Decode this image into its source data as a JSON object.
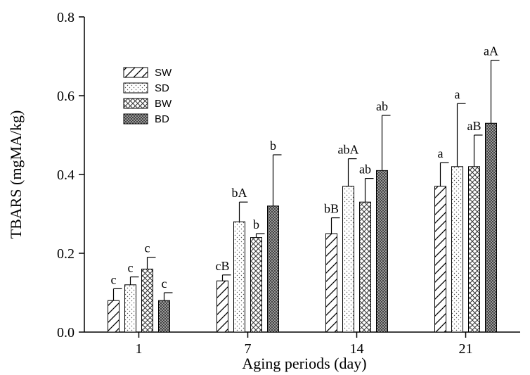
{
  "chart_data": {
    "type": "bar",
    "title": "",
    "xlabel": "Aging periods (day)",
    "ylabel": "TBARS (mgMA/kg)",
    "ylim": [
      0,
      0.8
    ],
    "yticks": [
      "0.0",
      "0.2",
      "0.4",
      "0.6",
      "0.8"
    ],
    "categories": [
      "1",
      "7",
      "14",
      "21"
    ],
    "legend_position": "top-left",
    "series": [
      {
        "name": "SW",
        "pattern": "diagonal-hatch",
        "values": [
          0.08,
          0.13,
          0.25,
          0.37
        ],
        "errors": [
          0.03,
          0.015,
          0.04,
          0.06
        ],
        "labels": [
          "c",
          "cB",
          "bB",
          "a"
        ]
      },
      {
        "name": "SD",
        "pattern": "light-dots",
        "values": [
          0.12,
          0.28,
          0.37,
          0.42
        ],
        "errors": [
          0.02,
          0.05,
          0.07,
          0.16
        ],
        "labels": [
          "c",
          "bA",
          "abA",
          "a"
        ]
      },
      {
        "name": "BW",
        "pattern": "crosshatch",
        "values": [
          0.16,
          0.24,
          0.33,
          0.42
        ],
        "errors": [
          0.03,
          0.01,
          0.06,
          0.08
        ],
        "labels": [
          "c",
          "b",
          "ab",
          "aB"
        ]
      },
      {
        "name": "BD",
        "pattern": "dark-dots",
        "values": [
          0.08,
          0.32,
          0.41,
          0.53
        ],
        "errors": [
          0.02,
          0.13,
          0.14,
          0.16
        ],
        "labels": [
          "c",
          "b",
          "ab",
          "aA"
        ]
      }
    ]
  }
}
